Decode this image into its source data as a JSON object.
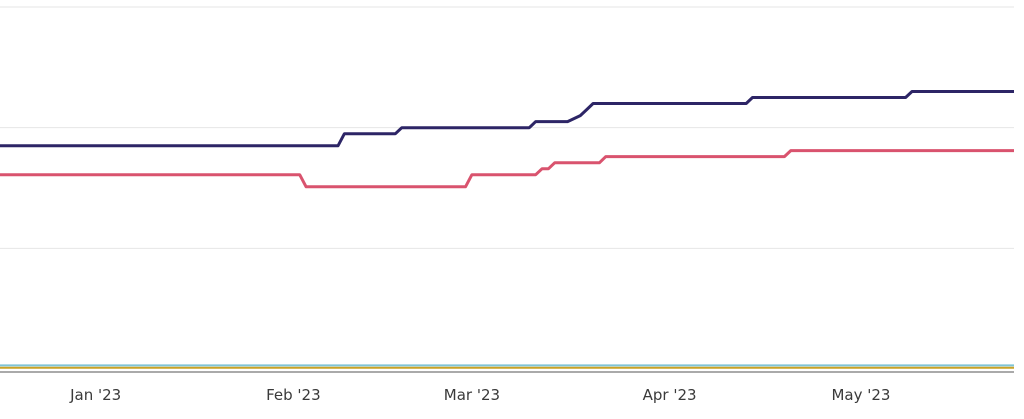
{
  "chart_data": {
    "type": "line",
    "title": "",
    "xlabel": "",
    "ylabel": "",
    "x_ticks": [
      {
        "label": "Jan '23",
        "day": 15
      },
      {
        "label": "Feb '23",
        "day": 46
      },
      {
        "label": "Mar '23",
        "day": 74
      },
      {
        "label": "Apr '23",
        "day": 105
      },
      {
        "label": "May '23",
        "day": 135
      }
    ],
    "xlim": [
      0,
      159
    ],
    "ylim": [
      0,
      300
    ],
    "grid": {
      "horizontal": [
        100,
        200,
        300
      ]
    },
    "series": [
      {
        "color": "#2d2566",
        "points": [
          [
            0,
            185
          ],
          [
            53,
            185
          ],
          [
            54,
            195
          ],
          [
            62,
            195
          ],
          [
            63,
            200
          ],
          [
            83,
            200
          ],
          [
            84,
            205
          ],
          [
            89,
            205
          ],
          [
            91,
            210
          ],
          [
            92,
            215
          ],
          [
            93,
            220
          ],
          [
            117,
            220
          ],
          [
            118,
            225
          ],
          [
            142,
            225
          ],
          [
            143,
            230
          ],
          [
            159,
            230
          ]
        ]
      },
      {
        "color": "#d9536e",
        "points": [
          [
            0,
            161
          ],
          [
            47,
            161
          ],
          [
            48,
            151
          ],
          [
            73,
            151
          ],
          [
            74,
            161
          ],
          [
            84,
            161
          ],
          [
            85,
            166
          ],
          [
            86,
            166
          ],
          [
            87,
            171
          ],
          [
            94,
            171
          ],
          [
            95,
            176
          ],
          [
            123,
            176
          ],
          [
            124,
            181
          ],
          [
            159,
            181
          ]
        ]
      },
      {
        "color": "#7fc4d6",
        "points": [
          [
            0,
            3
          ],
          [
            159,
            3
          ]
        ]
      },
      {
        "color": "#c9a227",
        "points": [
          [
            0,
            1
          ],
          [
            159,
            1
          ]
        ]
      }
    ]
  }
}
